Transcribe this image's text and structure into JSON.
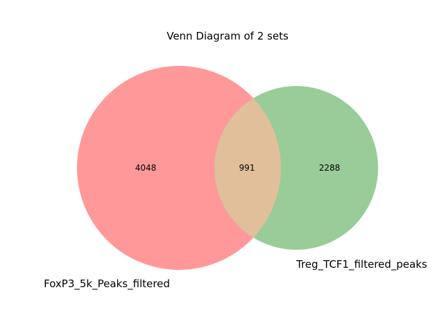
{
  "chart_data": {
    "type": "venn",
    "title": "Venn Diagram of 2 sets",
    "sets": [
      {
        "name": "FoxP3_5k_Peaks_filtered",
        "color": "#ff9999",
        "only_count": "4048"
      },
      {
        "name": "Treg_TCF1_filtered_peaks",
        "color": "#99cc99",
        "only_count": "2288"
      }
    ],
    "intersection": {
      "count": "991",
      "color": "#e0bf9a"
    }
  }
}
